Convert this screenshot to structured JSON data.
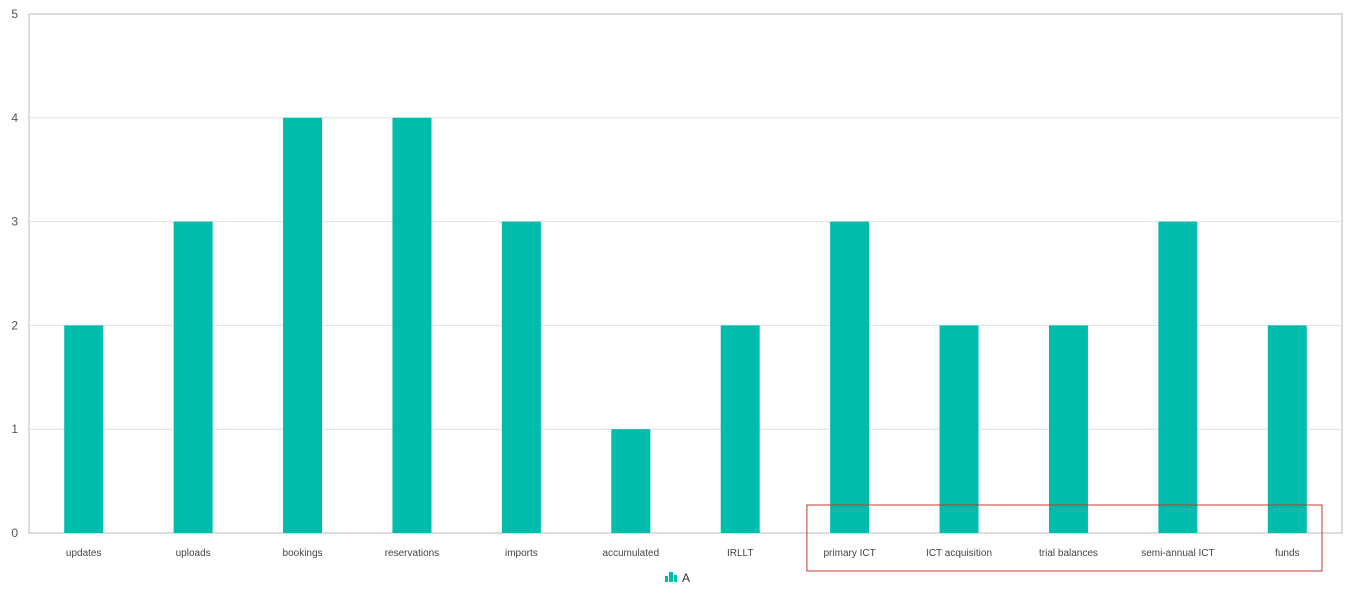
{
  "chart_data": {
    "type": "bar",
    "categories": [
      "updates",
      "uploads",
      "bookings",
      "reservations",
      "imports",
      "accumulated",
      "IRLLT",
      "primary ICT",
      "ICT acquisition",
      "trial balances",
      "semi-annual ICT",
      "funds"
    ],
    "series": [
      {
        "name": "A",
        "values": [
          2,
          3,
          4,
          4,
          3,
          1,
          2,
          3,
          2,
          2,
          3,
          2
        ]
      }
    ],
    "ylim": [
      0,
      5
    ],
    "yticks": [
      0,
      1,
      2,
      3,
      4,
      5
    ],
    "grid": true,
    "legend_position": "bottom-center",
    "xlabel": "",
    "ylabel": "",
    "title": "",
    "highlight": {
      "categories": [
        "primary ICT",
        "ICT acquisition",
        "trial balances",
        "semi-annual ICT",
        "funds"
      ],
      "color": "#c0392b"
    }
  },
  "colors": {
    "bar": "#00bcac",
    "grid": "#e0e0e0",
    "axis": "#bbbbbb",
    "highlight_box": "#c0392b"
  },
  "legend": {
    "icon": "bar-chart-icon",
    "label": "A"
  }
}
